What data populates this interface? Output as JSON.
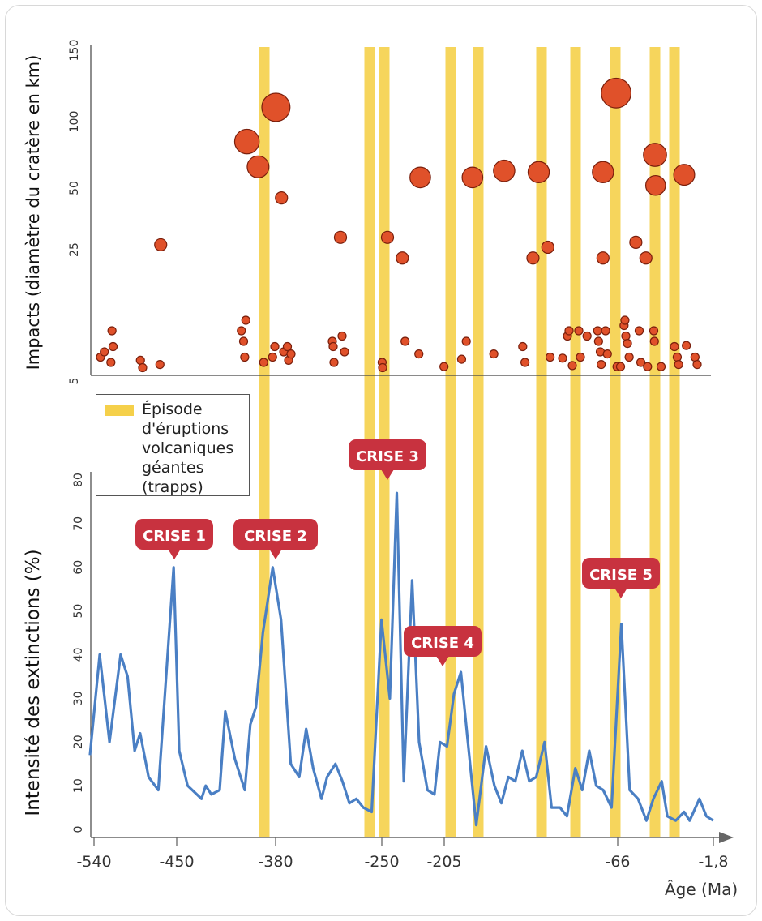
{
  "chart_data": [
    {
      "type": "scatter",
      "ylabel": "Impacts (diamètre du cratère en km)",
      "yticks": [
        "150",
        "100",
        "50",
        "25",
        "5"
      ],
      "volcanic_episodes_x": [
        -380,
        -262,
        -251,
        -201,
        -183,
        -133,
        -112,
        -66,
        -30,
        -16
      ],
      "series": [
        {
          "values": [
            {
              "x": -542,
              "y": 6.5
            },
            {
              "x": -538,
              "y": 7
            },
            {
              "x": -532,
              "y": 6
            },
            {
              "x": -531,
              "y": 9
            },
            {
              "x": -530,
              "y": 7.5
            },
            {
              "x": -505,
              "y": 6.2
            },
            {
              "x": -503,
              "y": 5.5
            },
            {
              "x": -482,
              "y": 5.8
            },
            {
              "x": -481,
              "y": 27
            },
            {
              "x": -418,
              "y": 9
            },
            {
              "x": -416,
              "y": 8
            },
            {
              "x": -415,
              "y": 6.5
            },
            {
              "x": -414,
              "y": 10
            },
            {
              "x": -413,
              "y": 85
            },
            {
              "x": -403,
              "y": 66
            },
            {
              "x": -398,
              "y": 6
            },
            {
              "x": -390,
              "y": 6.5
            },
            {
              "x": -388,
              "y": 7.5
            },
            {
              "x": -387,
              "y": 110
            },
            {
              "x": -382,
              "y": 46
            },
            {
              "x": -380,
              "y": 7
            },
            {
              "x": -377,
              "y": 7.5
            },
            {
              "x": -376,
              "y": 6.2
            },
            {
              "x": -374,
              "y": 6.8
            },
            {
              "x": -340,
              "y": 8
            },
            {
              "x": -339,
              "y": 7.5
            },
            {
              "x": -338,
              "y": 6
            },
            {
              "x": -330,
              "y": 30
            },
            {
              "x": -328,
              "y": 8.5
            },
            {
              "x": -325,
              "y": 7
            },
            {
              "x": -263,
              "y": 6
            },
            {
              "x": -262,
              "y": 5.5
            },
            {
              "x": -254,
              "y": 30
            },
            {
              "x": -241,
              "y": 23
            },
            {
              "x": -239,
              "y": 8
            },
            {
              "x": -229,
              "y": 6.8
            },
            {
              "x": -228,
              "y": 58
            },
            {
              "x": -211,
              "y": 5.6
            },
            {
              "x": -199,
              "y": 6.3
            },
            {
              "x": -196,
              "y": 8
            },
            {
              "x": -192,
              "y": 58
            },
            {
              "x": -178,
              "y": 6.8
            },
            {
              "x": -171,
              "y": 63
            },
            {
              "x": -158,
              "y": 7.5
            },
            {
              "x": -156,
              "y": 6
            },
            {
              "x": -149,
              "y": 23
            },
            {
              "x": -144,
              "y": 62
            },
            {
              "x": -136,
              "y": 26
            },
            {
              "x": -134,
              "y": 6.5
            },
            {
              "x": -126,
              "y": 6.4
            },
            {
              "x": -123,
              "y": 8.5
            },
            {
              "x": -122,
              "y": 9
            },
            {
              "x": -120,
              "y": 5.7
            },
            {
              "x": -116,
              "y": 9
            },
            {
              "x": -115,
              "y": 6.5
            },
            {
              "x": -110,
              "y": 8.5
            },
            {
              "x": -98,
              "y": 9
            },
            {
              "x": -97,
              "y": 8
            },
            {
              "x": -95,
              "y": 7
            },
            {
              "x": -94,
              "y": 5.8
            },
            {
              "x": -92,
              "y": 62
            },
            {
              "x": -92,
              "y": 23
            },
            {
              "x": -89,
              "y": 9
            },
            {
              "x": -87,
              "y": 6.8
            },
            {
              "x": -77,
              "y": 120
            },
            {
              "x": -76,
              "y": 5.6
            },
            {
              "x": -72,
              "y": 5.6
            },
            {
              "x": -68,
              "y": 9.5
            },
            {
              "x": -67,
              "y": 10
            },
            {
              "x": -66,
              "y": 8.5
            },
            {
              "x": -65,
              "y": 7.8
            },
            {
              "x": -64,
              "y": 6.5
            },
            {
              "x": -60,
              "y": 28
            },
            {
              "x": -58,
              "y": 9
            },
            {
              "x": -57,
              "y": 6
            },
            {
              "x": -54,
              "y": 23
            },
            {
              "x": -53,
              "y": 5.6
            },
            {
              "x": -48,
              "y": 9
            },
            {
              "x": -47,
              "y": 8
            },
            {
              "x": -46,
              "y": 75
            },
            {
              "x": -45,
              "y": 52
            },
            {
              "x": -36,
              "y": 5.6
            },
            {
              "x": -23,
              "y": 7.5
            },
            {
              "x": -21,
              "y": 6.5
            },
            {
              "x": -20,
              "y": 5.8
            },
            {
              "x": -16,
              "y": 60
            },
            {
              "x": -15,
              "y": 7.6
            },
            {
              "x": -11,
              "y": 6.5
            },
            {
              "x": -10,
              "y": 5.8
            }
          ]
        }
      ]
    },
    {
      "type": "line",
      "ylabel": "Intensité des extinctions (%)",
      "xlabel": "Âge (Ma)",
      "ylim": [
        0,
        80
      ],
      "yticks": [
        0,
        10,
        20,
        30,
        40,
        50,
        60,
        70,
        80
      ],
      "xticks": [
        "-540",
        "-450",
        "-380",
        "-250",
        "-205",
        "-66",
        "-1,8"
      ],
      "volcanic_episodes_x": [
        -380,
        -262,
        -251,
        -201,
        -183,
        -133,
        -112,
        -66,
        -30,
        -16
      ],
      "series": [
        {
          "color": "#4a7fc4",
          "values": [
            [
              -542,
              17
            ],
            [
              -535,
              40
            ],
            [
              -528,
              20
            ],
            [
              -520,
              40
            ],
            [
              -515,
              35
            ],
            [
              -510,
              18
            ],
            [
              -506,
              22
            ],
            [
              -500,
              12
            ],
            [
              -493,
              9
            ],
            [
              -482,
              60
            ],
            [
              -478,
              18
            ],
            [
              -472,
              10
            ],
            [
              -462,
              7
            ],
            [
              -459,
              10
            ],
            [
              -455,
              8
            ],
            [
              -449,
              9
            ],
            [
              -445,
              27
            ],
            [
              -438,
              16
            ],
            [
              -431,
              9
            ],
            [
              -427,
              24
            ],
            [
              -423,
              28
            ],
            [
              -418,
              45
            ],
            [
              -411,
              60
            ],
            [
              -405,
              48
            ],
            [
              -398,
              15
            ],
            [
              -392,
              12
            ],
            [
              -387,
              23
            ],
            [
              -382,
              14
            ],
            [
              -376,
              7
            ],
            [
              -372,
              12
            ],
            [
              -366,
              15
            ],
            [
              -361,
              11
            ],
            [
              -356,
              6
            ],
            [
              -351,
              7
            ],
            [
              -346,
              5
            ],
            [
              -340,
              4
            ],
            [
              -333,
              48
            ],
            [
              -327,
              30
            ],
            [
              -322,
              77
            ],
            [
              -317,
              11
            ],
            [
              -311,
              57
            ],
            [
              -306,
              20
            ],
            [
              -300,
              9
            ],
            [
              -295,
              8
            ],
            [
              -291,
              20
            ],
            [
              -286,
              19
            ],
            [
              -281,
              31
            ],
            [
              -276,
              36
            ],
            [
              -271,
              20
            ],
            [
              -265,
              1
            ],
            [
              -258,
              19
            ],
            [
              -252,
              10
            ],
            [
              -247,
              6
            ],
            [
              -242,
              12
            ],
            [
              -237,
              11
            ],
            [
              -232,
              18
            ],
            [
              -227,
              11
            ],
            [
              -222,
              12
            ],
            [
              -216,
              20
            ],
            [
              -211,
              5
            ],
            [
              -205,
              5
            ],
            [
              -200,
              3
            ],
            [
              -194,
              14
            ],
            [
              -189,
              9
            ],
            [
              -184,
              18
            ],
            [
              -179,
              10
            ],
            [
              -174,
              9
            ],
            [
              -168,
              5
            ],
            [
              -161,
              47
            ],
            [
              -155,
              9
            ],
            [
              -149,
              7
            ],
            [
              -143,
              2
            ],
            [
              -138,
              7
            ],
            [
              -132,
              11
            ],
            [
              -128,
              3
            ],
            [
              -122,
              2
            ],
            [
              -116,
              4
            ],
            [
              -112,
              2
            ],
            [
              -105,
              7
            ],
            [
              -100,
              3
            ],
            [
              -95,
              2
            ]
          ]
        }
      ],
      "annotations": [
        "CRISE 1",
        "CRISE 2",
        "CRISE 3",
        "CRISE 4",
        "CRISE 5"
      ]
    }
  ],
  "legend": {
    "lines": [
      "Épisode",
      "d'éruptions",
      "volcaniques",
      "géantes (trapps)"
    ]
  },
  "axis": {
    "xlabel": "Âge (Ma)"
  },
  "colors": {
    "episode": "#f5d04a",
    "impact": "#e0512a",
    "impact_stroke": "#7a1f0c",
    "extinction": "#4a7fc4",
    "crise": "#c8323f"
  }
}
